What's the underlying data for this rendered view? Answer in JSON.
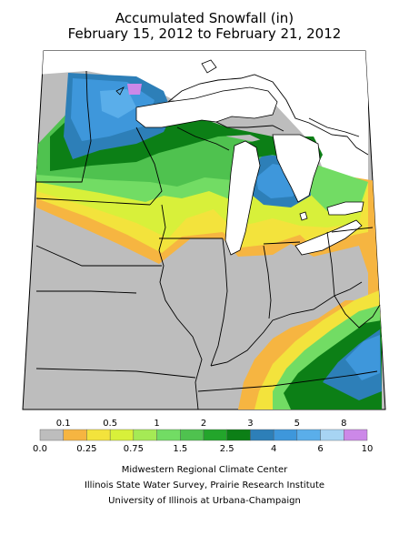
{
  "title_line1": "Accumulated Snowfall (in)",
  "title_line2": "February 15, 2012 to February 21, 2012",
  "legend": {
    "bins": [
      {
        "lo": "0.0",
        "color": "#bdbdbd"
      },
      {
        "lo": "0.1",
        "color": "#f6b541"
      },
      {
        "lo": "0.25",
        "color": "#f3e33c"
      },
      {
        "lo": "0.5",
        "color": "#d8f03a"
      },
      {
        "lo": "0.75",
        "color": "#a5ea55"
      },
      {
        "lo": "1",
        "color": "#72dc64"
      },
      {
        "lo": "1.5",
        "color": "#4fc24f"
      },
      {
        "lo": "2",
        "color": "#23a52b"
      },
      {
        "lo": "2.5",
        "color": "#0c7f16"
      },
      {
        "lo": "3",
        "color": "#2d7fb8"
      },
      {
        "lo": "4",
        "color": "#3e97db"
      },
      {
        "lo": "5",
        "color": "#5aaeea"
      },
      {
        "lo": "6",
        "color": "#a7d4f3"
      },
      {
        "lo": "8",
        "color": "#cc88e8"
      }
    ],
    "top_labels": [
      "0.1",
      "0.5",
      "1",
      "2",
      "3",
      "5",
      "8"
    ],
    "bottom_labels": [
      "0.0",
      "0.25",
      "0.75",
      "1.5",
      "2.5",
      "4",
      "6",
      "10"
    ]
  },
  "credits": {
    "line1": "Midwestern Regional Climate Center",
    "line2": "Illinois State Water Survey, Prairie Research Institute",
    "line3": "University of Illinois at Urbana-Champaign"
  }
}
